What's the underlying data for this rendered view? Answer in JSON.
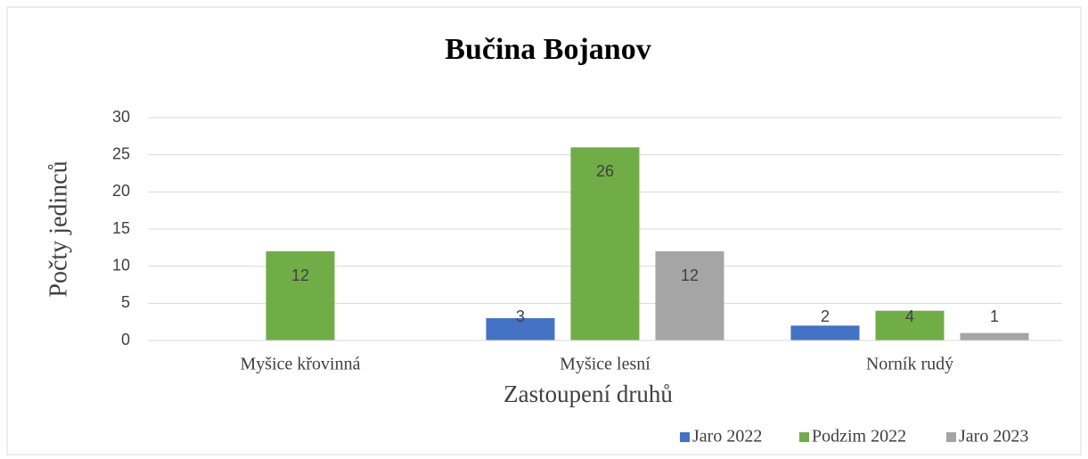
{
  "chart_data": {
    "type": "bar",
    "title": "Bučina Bojanov",
    "y_label": "Počty jedinců",
    "x_label": "Zastoupení druhů",
    "categories": [
      "Myšice křovinná",
      "Myšice lesní",
      "Norník rudý"
    ],
    "series": [
      {
        "name": "Jaro 2022",
        "color": "#4472c4",
        "values": [
          null,
          3,
          2
        ]
      },
      {
        "name": "Podzim 2022",
        "color": "#70ad47",
        "values": [
          12,
          26,
          4
        ]
      },
      {
        "name": "Jaro 2023",
        "color": "#a5a5a5",
        "values": [
          null,
          12,
          1
        ]
      }
    ],
    "ylim": [
      0,
      30
    ],
    "yticks": [
      0,
      5,
      10,
      15,
      20,
      25,
      30
    ],
    "grid": true,
    "legend": "bottom-right"
  }
}
